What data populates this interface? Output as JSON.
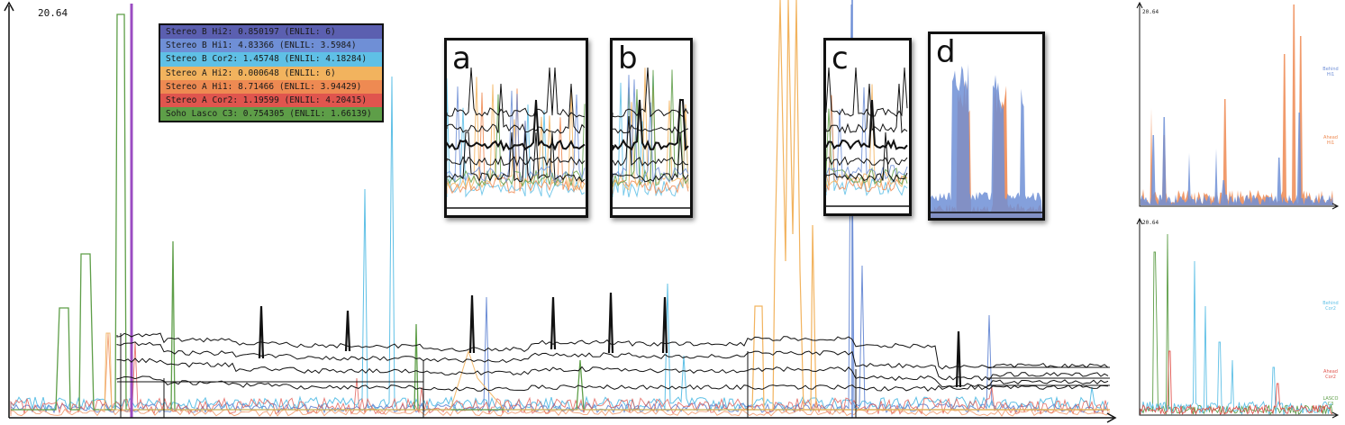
{
  "chart_data": {
    "type": "line",
    "ymax_label": "20.64",
    "legend": [
      {
        "text": "Stereo B Hi2:  0.850197 (ENLIL: 6)",
        "color": "#5b5fb0"
      },
      {
        "text": "Stereo B Hi1:  4.83366 (ENLIL: 3.5984)",
        "color": "#6f8fd6"
      },
      {
        "text": "Stereo B Cor2: 1.45748 (ENLIL: 4.18284)",
        "color": "#5fc0e6"
      },
      {
        "text": "Stereo A Hi2:  0.000648 (ENLIL: 6)",
        "color": "#f2b35e"
      },
      {
        "text": "Stereo A Hi1:  8.71466 (ENLIL: 3.94429)",
        "color": "#ee8a52"
      },
      {
        "text": "Stereo A Cor2: 1.19599 (ENLIL: 4.20415)",
        "color": "#e0554e"
      },
      {
        "text": "Soho Lasco C3: 0.754305 (ENLIL: 1.66139)",
        "color": "#5e9e48"
      }
    ],
    "insets": [
      {
        "label": "a"
      },
      {
        "label": "b"
      },
      {
        "label": "c"
      },
      {
        "label": "d"
      }
    ],
    "side_panels": [
      {
        "ymax_label": "20.64",
        "series_labels": [
          {
            "text": "Behind\nHi1",
            "color": "#6f8fd6"
          },
          {
            "text": "Ahead\nHi1",
            "color": "#ee8a52"
          }
        ]
      },
      {
        "ymax_label": "20.64",
        "series_labels": [
          {
            "text": "Behind\nCor2",
            "color": "#5fc0e6"
          },
          {
            "text": "Ahead\nCor2",
            "color": "#e0554e"
          },
          {
            "text": "LASCO\nC3",
            "color": "#5e9e48"
          }
        ]
      }
    ],
    "series_colors": {
      "bHi2": "#5b5fb0",
      "bHi1": "#6f8fd6",
      "bCor2": "#5fc0e6",
      "aHi2": "#f2b35e",
      "aHi1": "#ee8a52",
      "aCor2": "#e0554e",
      "c3": "#5e9e48",
      "enlil": "#111111",
      "marker": "#9b4dc2"
    }
  }
}
